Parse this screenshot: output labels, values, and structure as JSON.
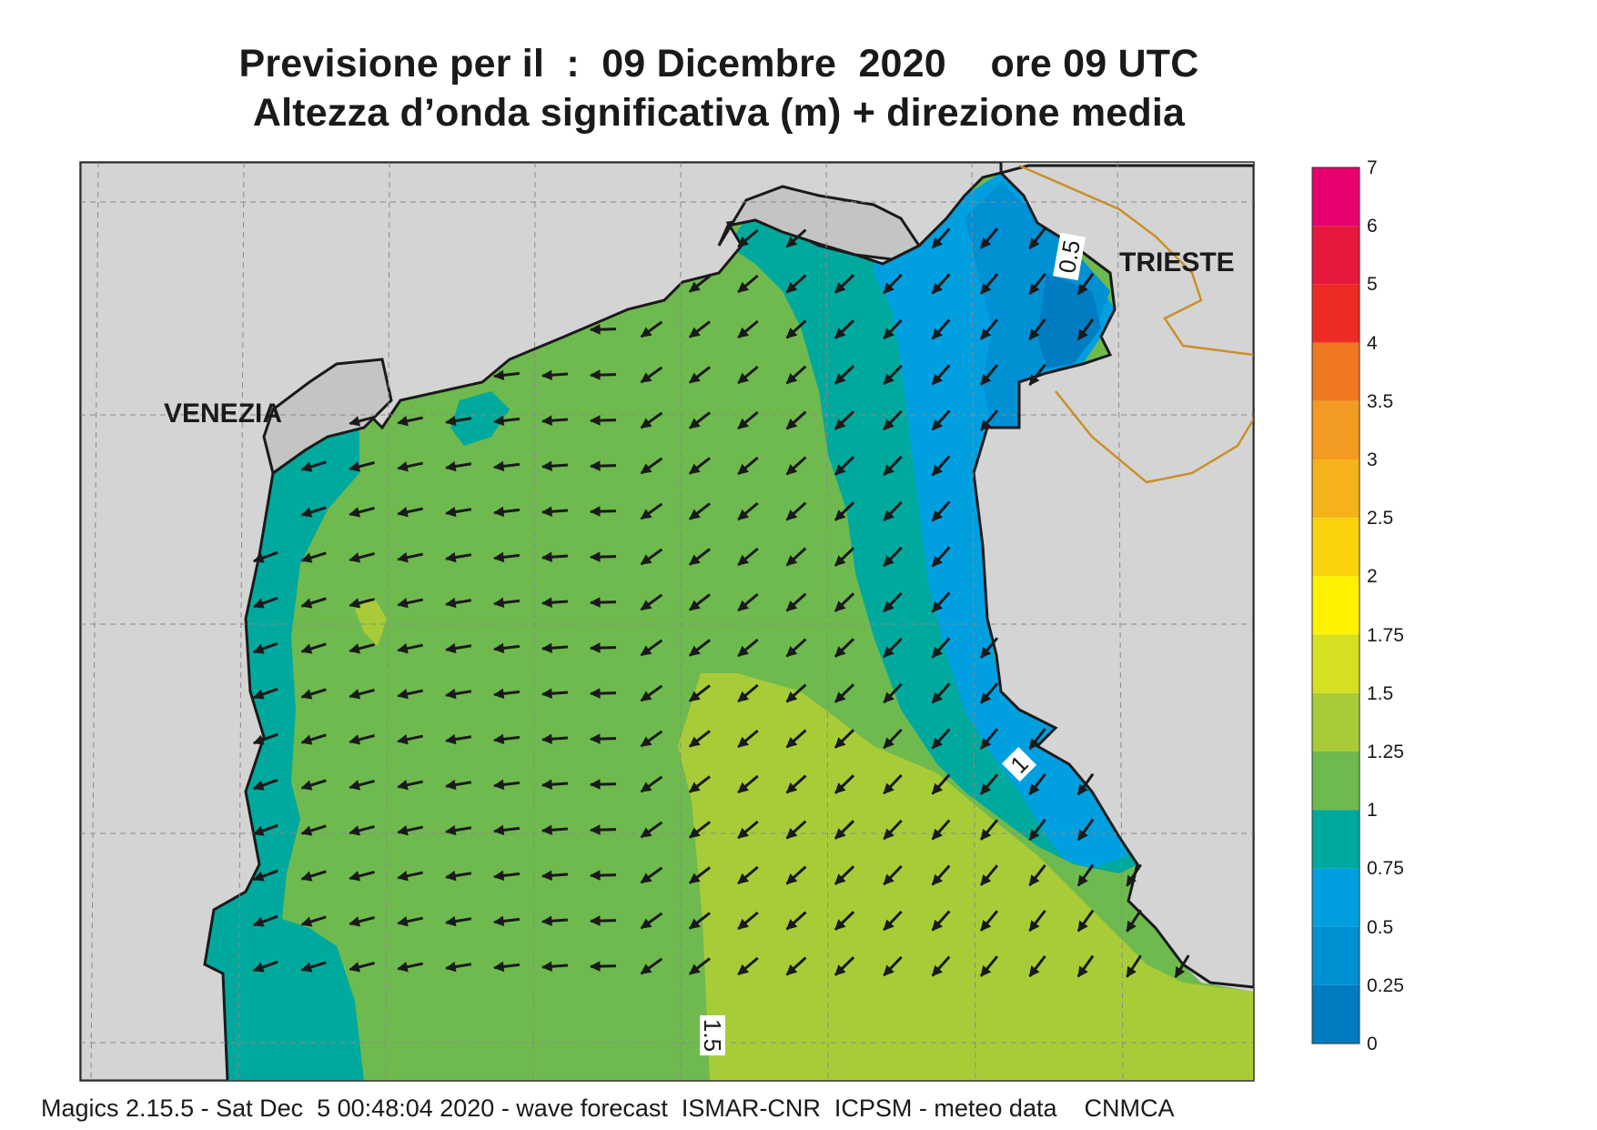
{
  "header": {
    "line1": "Previsione per il  :  09 Dicembre  2020    ore 09 UTC",
    "line2": "Altezza d’onda significativa (m) + direzione media"
  },
  "cities": [
    {
      "name": "VENEZIA"
    },
    {
      "name": "TRIESTE"
    }
  ],
  "contour_labels": [
    "0.5",
    "1",
    "1.5"
  ],
  "legend": {
    "levels": [
      {
        "label": "7",
        "color": "#e8006e"
      },
      {
        "label": "6",
        "color": "#e6183c"
      },
      {
        "label": "5",
        "color": "#ee2a24"
      },
      {
        "label": "4",
        "color": "#f07820"
      },
      {
        "label": "3.5",
        "color": "#f39a22"
      },
      {
        "label": "3",
        "color": "#f6b21a"
      },
      {
        "label": "2.5",
        "color": "#fbd20c"
      },
      {
        "label": "2",
        "color": "#fff200"
      },
      {
        "label": "1.75",
        "color": "#d4e021"
      },
      {
        "label": "1.5",
        "color": "#a8cc38"
      },
      {
        "label": "1.25",
        "color": "#6fba4e"
      },
      {
        "label": "1",
        "color": "#00a99d"
      },
      {
        "label": "0.75",
        "color": "#00a0e0"
      },
      {
        "label": "0.5",
        "color": "#0090d4"
      },
      {
        "label": "0.25",
        "color": "#007cc2"
      },
      {
        "label": "0",
        "color": "#0066b0"
      }
    ]
  },
  "colors": {
    "land": "#d4d4d4",
    "coast": "#1a1a1a",
    "border": "#c9902a",
    "arrow": "#1a1a1a"
  },
  "footer": "Magics 2.15.5 - Sat Dec  5 00:48:04 2020 - wave forecast  ISMAR-CNR  ICPSM - meteo data    CNMCA"
}
